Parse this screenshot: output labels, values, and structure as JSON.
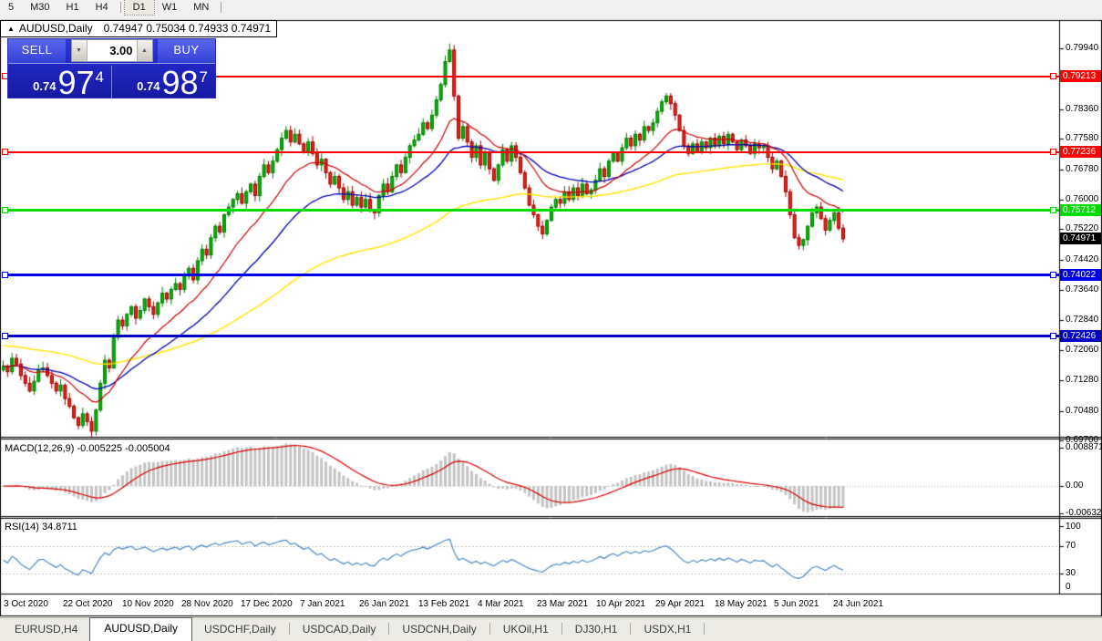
{
  "toolbar": {
    "periods": [
      {
        "label": "5",
        "active": false
      },
      {
        "label": "M30",
        "active": false
      },
      {
        "label": "H1",
        "active": false
      },
      {
        "label": "H4",
        "active": false
      },
      {
        "label": "D1",
        "active": true
      },
      {
        "label": "W1",
        "active": false
      },
      {
        "label": "MN",
        "active": false
      }
    ]
  },
  "chart_title": {
    "collapse_icon": "▲",
    "symbol": "AUDUSD,Daily",
    "ohlc": "0.74947 0.75034 0.74933 0.74971"
  },
  "trade_panel": {
    "sell_label": "SELL",
    "buy_label": "BUY",
    "volume": "3.00",
    "sell_price": {
      "prefix": "0.74",
      "big": "97",
      "sup": "4"
    },
    "buy_price": {
      "prefix": "0.74",
      "big": "98",
      "sup": "7"
    }
  },
  "icons": {
    "volume_down": "▼",
    "volume_up": "▲"
  },
  "price_axis": {
    "ticks": [
      "0.79940",
      "0.79160",
      "0.78360",
      "0.77580",
      "0.76780",
      "0.76000",
      "0.75220",
      "0.74420",
      "0.73640",
      "0.72840",
      "0.72060",
      "0.71280",
      "0.70480",
      "0.69700"
    ]
  },
  "levels": [
    {
      "label": "0.79213",
      "price": 0.79213,
      "color": "#FF0000",
      "thickness": 2
    },
    {
      "label": "0.77236",
      "price": 0.77236,
      "color": "#FF0000",
      "thickness": 2
    },
    {
      "label": "0.75712",
      "price": 0.75712,
      "color": "#00DC00",
      "thickness": 3
    },
    {
      "label": "0.74022",
      "price": 0.74022,
      "color": "#0000E8",
      "thickness": 3
    },
    {
      "label": "0.72426",
      "price": 0.72426,
      "color": "#0000C0",
      "thickness": 3
    }
  ],
  "current_price": {
    "label": "0.74971",
    "value": 0.74971,
    "badge_color": "#000000"
  },
  "indicators": {
    "macd": {
      "label": "MACD(12,26,9) -0.005225 -0.005004",
      "ticks": [
        "0.008871",
        "0.00",
        "-0.00632"
      ],
      "histogram_color": "#c4c4c4",
      "signal_color": "#dd0000"
    },
    "rsi": {
      "label": "RSI(14) 34.8711",
      "ticks": [
        "100",
        "70",
        "30",
        "0"
      ],
      "levels": [
        70,
        30
      ],
      "line_color": "#3f7fc4"
    }
  },
  "date_axis": {
    "labels": [
      "3 Oct 2020",
      "22 Oct 2020",
      "10 Nov 2020",
      "28 Nov 2020",
      "17 Dec 2020",
      "7 Jan 2021",
      "26 Jan 2021",
      "13 Feb 2021",
      "4 Mar 2021",
      "23 Mar 2021",
      "10 Apr 2021",
      "29 Apr 2021",
      "18 May 2021",
      "5 Jun 2021",
      "24 Jun 2021"
    ]
  },
  "tabs": {
    "items": [
      {
        "label": "EURUSD,H4",
        "active": false
      },
      {
        "label": "AUDUSD,Daily",
        "active": true
      },
      {
        "label": "USDCHF,Daily",
        "active": false
      },
      {
        "label": "USDCAD,Daily",
        "active": false
      },
      {
        "label": "USDCNH,Daily",
        "active": false
      },
      {
        "label": "UKOil,H1",
        "active": false
      },
      {
        "label": "DJ30,H1",
        "active": false
      },
      {
        "label": "USDX,H1",
        "active": false
      }
    ]
  },
  "chart_data": {
    "type": "candlestick",
    "symbol": "AUDUSD",
    "timeframe": "Daily",
    "x_labels": [
      "3 Oct 2020",
      "22 Oct 2020",
      "10 Nov 2020",
      "28 Nov 2020",
      "17 Dec 2020",
      "7 Jan 2021",
      "26 Jan 2021",
      "13 Feb 2021",
      "4 Mar 2021",
      "23 Mar 2021",
      "10 Apr 2021",
      "29 Apr 2021",
      "18 May 2021",
      "5 Jun 2021",
      "24 Jun 2021"
    ],
    "ylim": [
      0.697,
      0.7994
    ],
    "closes": [
      0.7165,
      0.715,
      0.7185,
      0.717,
      0.714,
      0.712,
      0.71,
      0.7125,
      0.7155,
      0.716,
      0.714,
      0.712,
      0.71,
      0.7115,
      0.708,
      0.706,
      0.703,
      0.701,
      0.704,
      0.702,
      0.6995,
      0.705,
      0.712,
      0.718,
      0.716,
      0.724,
      0.7285,
      0.727,
      0.73,
      0.732,
      0.729,
      0.731,
      0.734,
      0.732,
      0.73,
      0.733,
      0.7355,
      0.734,
      0.7365,
      0.738,
      0.7365,
      0.74,
      0.742,
      0.739,
      0.744,
      0.747,
      0.7455,
      0.75,
      0.753,
      0.7515,
      0.756,
      0.758,
      0.76,
      0.7615,
      0.759,
      0.762,
      0.764,
      0.761,
      0.766,
      0.769,
      0.767,
      0.77,
      0.773,
      0.776,
      0.778,
      0.775,
      0.777,
      0.7745,
      0.7725,
      0.775,
      0.772,
      0.769,
      0.7705,
      0.767,
      0.764,
      0.766,
      0.763,
      0.76,
      0.762,
      0.7585,
      0.7605,
      0.758,
      0.76,
      0.757,
      0.7565,
      0.761,
      0.764,
      0.762,
      0.766,
      0.769,
      0.767,
      0.771,
      0.774,
      0.7755,
      0.777,
      0.78,
      0.7785,
      0.782,
      0.786,
      0.79,
      0.796,
      0.799,
      0.787,
      0.776,
      0.779,
      0.775,
      0.771,
      0.774,
      0.769,
      0.772,
      0.768,
      0.765,
      0.769,
      0.773,
      0.77,
      0.774,
      0.771,
      0.767,
      0.763,
      0.7585,
      0.756,
      0.753,
      0.751,
      0.7545,
      0.758,
      0.76,
      0.759,
      0.762,
      0.76,
      0.763,
      0.761,
      0.764,
      0.7615,
      0.7625,
      0.765,
      0.768,
      0.766,
      0.77,
      0.772,
      0.77,
      0.7735,
      0.776,
      0.774,
      0.777,
      0.7755,
      0.779,
      0.778,
      0.78,
      0.783,
      0.7855,
      0.787,
      0.785,
      0.782,
      0.778,
      0.774,
      0.772,
      0.7745,
      0.7725,
      0.775,
      0.7735,
      0.776,
      0.774,
      0.7765,
      0.7745,
      0.777,
      0.775,
      0.773,
      0.7755,
      0.774,
      0.772,
      0.7745,
      0.7735,
      0.774,
      0.771,
      0.768,
      0.77,
      0.766,
      0.762,
      0.756,
      0.75,
      0.748,
      0.7495,
      0.753,
      0.7565,
      0.758,
      0.755,
      0.752,
      0.7545,
      0.7565,
      0.7525,
      0.74971
    ],
    "ma_colors": {
      "fast": "#cc0000",
      "mid": "#0000b4",
      "slow": "#ffe400"
    },
    "candle_colors": {
      "bull_fill": "#00b200",
      "bull_edge": "#007d00",
      "bear_fill": "#ee2211",
      "bear_edge": "#990000"
    }
  }
}
